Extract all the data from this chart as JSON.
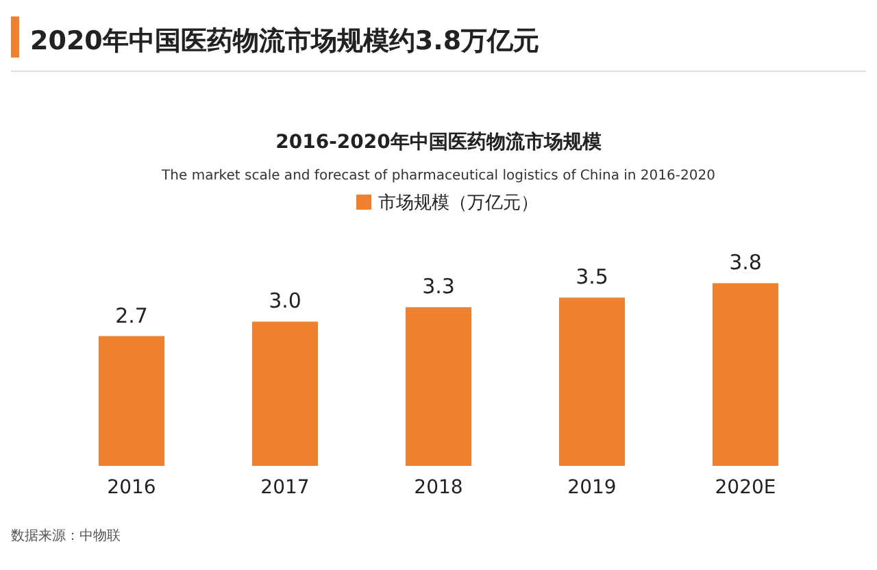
{
  "chart_data": {
    "type": "bar",
    "title": "2020年中国医药物流市场规模约3.8万亿元",
    "subtitle": "2016-2020年中国医药物流市场规模",
    "annotations": [
      "The market scale and forecast of pharmaceutical logistics of China in 2016-2020",
      "数据来源：中物联"
    ],
    "categories": [
      "2016",
      "2017",
      "2018",
      "2019",
      "2020E"
    ],
    "series": [
      {
        "name": "市场规模（万亿元）",
        "color": "#f0822f",
        "values": [
          2.7,
          3.0,
          3.3,
          3.5,
          3.8
        ],
        "value_labels": [
          "2.7",
          "3.0",
          "3.3",
          "3.5",
          "3.8"
        ]
      }
    ],
    "legend": "top"
  }
}
